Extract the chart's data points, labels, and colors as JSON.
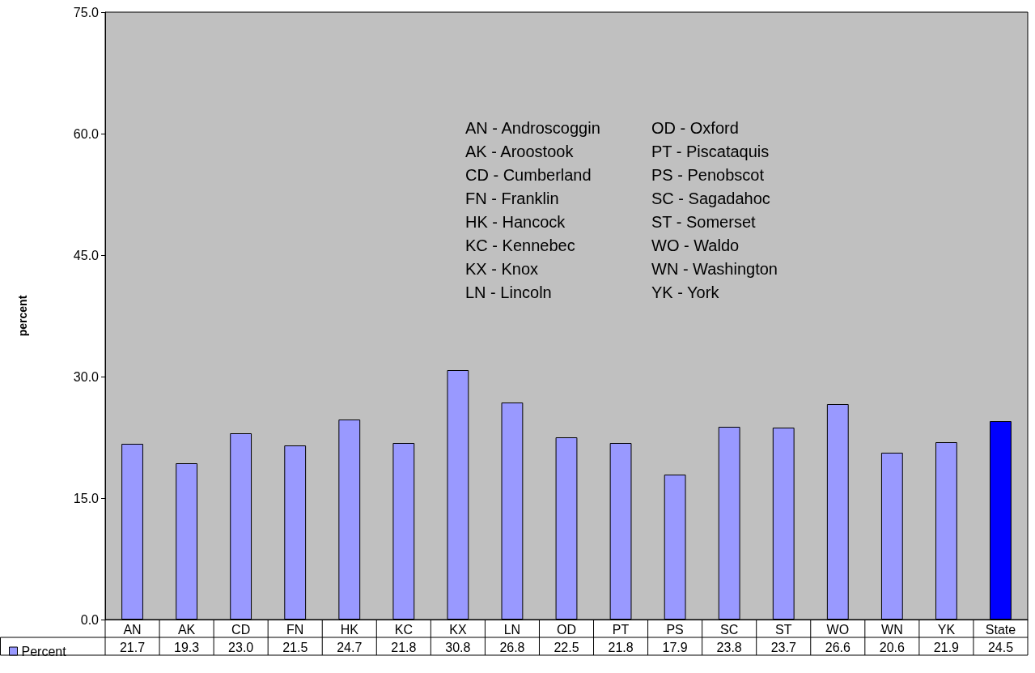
{
  "chart_data": {
    "type": "bar",
    "ylabel": "percent",
    "categories": [
      "AN",
      "AK",
      "CD",
      "FN",
      "HK",
      "KC",
      "KX",
      "LN",
      "OD",
      "PT",
      "PS",
      "SC",
      "ST",
      "WO",
      "WN",
      "YK",
      "State"
    ],
    "series": [
      {
        "name": "Percent",
        "color": "#9999ff",
        "colors": [
          "#9999ff",
          "#9999ff",
          "#9999ff",
          "#9999ff",
          "#9999ff",
          "#9999ff",
          "#9999ff",
          "#9999ff",
          "#9999ff",
          "#9999ff",
          "#9999ff",
          "#9999ff",
          "#9999ff",
          "#9999ff",
          "#9999ff",
          "#9999ff",
          "#0000ff"
        ],
        "values": [
          21.7,
          19.3,
          23.0,
          21.5,
          24.7,
          21.8,
          30.8,
          26.8,
          22.5,
          21.8,
          17.9,
          23.8,
          23.7,
          26.6,
          20.6,
          21.9,
          24.5
        ],
        "value_labels": [
          "21.7",
          "19.3",
          "23.0",
          "21.5",
          "24.7",
          "21.8",
          "30.8",
          "26.8",
          "22.5",
          "21.8",
          "17.9",
          "23.8",
          "23.7",
          "26.6",
          "20.6",
          "21.9",
          "24.5"
        ]
      }
    ],
    "ylim": [
      0,
      75
    ],
    "yticks": [
      {
        "value": 0,
        "label": "0.0"
      },
      {
        "value": 15,
        "label": "15.0"
      },
      {
        "value": 30,
        "label": "30.0"
      },
      {
        "value": 45,
        "label": "45.0"
      },
      {
        "value": 60,
        "label": "60.0"
      },
      {
        "value": 75,
        "label": "75.0"
      }
    ],
    "grid": false,
    "legend": "bottom left",
    "annotations": [
      "AN - Androscoggin\nAK - Aroostook\nCD - Cumberland\nFN - Franklin\nHK - Hancock\nKC - Kennebec\nKX - Knox\nLN - Lincoln",
      "OD - Oxford\nPT - Piscataquis\nPS - Penobscot\nSC - Sagadahoc\nST - Somerset\nWO - Waldo\nWN - Washington\nYK - York"
    ]
  }
}
